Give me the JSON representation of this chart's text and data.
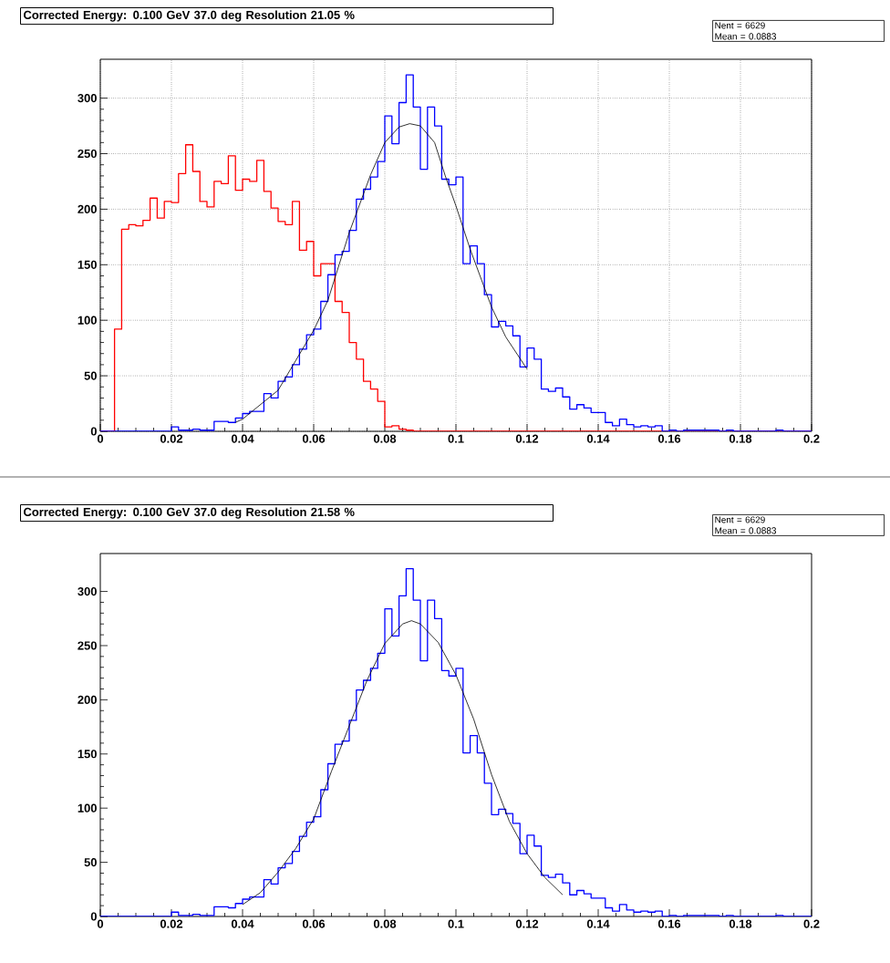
{
  "chart_data": [
    {
      "type": "histogram",
      "title": "Corrected Energy: 0.100 GeV 37.0 deg  Resolution 21.05 %",
      "annotations": [
        "Nent = 6629",
        "Mean = 0.0883"
      ],
      "bins": [
        0,
        0.002,
        0.004,
        0.006,
        0.008,
        0.01,
        0.012,
        0.014,
        0.016,
        0.018,
        0.02,
        0.022,
        0.024,
        0.026,
        0.028,
        0.03,
        0.032,
        0.034,
        0.036,
        0.038,
        0.04,
        0.042,
        0.044,
        0.046,
        0.048,
        0.05,
        0.052,
        0.054,
        0.056,
        0.058,
        0.06,
        0.062,
        0.064,
        0.066,
        0.068,
        0.07,
        0.072,
        0.074,
        0.076,
        0.078,
        0.08,
        0.082,
        0.084,
        0.086,
        0.088,
        0.09,
        0.092,
        0.094,
        0.096,
        0.098,
        0.1,
        0.102,
        0.104,
        0.106,
        0.108,
        0.11,
        0.112,
        0.114,
        0.116,
        0.118,
        0.12,
        0.122,
        0.124,
        0.126,
        0.128,
        0.13,
        0.132,
        0.134,
        0.136,
        0.138,
        0.14,
        0.142,
        0.144,
        0.146,
        0.148,
        0.15,
        0.152,
        0.154,
        0.156,
        0.158,
        0.16,
        0.162,
        0.164,
        0.166,
        0.168,
        0.17,
        0.172,
        0.174,
        0.176,
        0.178,
        0.18,
        0.182,
        0.184,
        0.186,
        0.188,
        0.19,
        0.192,
        0.194,
        0.196,
        0.198,
        0.2
      ],
      "series": [
        {
          "color": "#ff0000",
          "values": [
            0,
            0,
            92,
            182,
            186,
            185,
            190,
            210,
            192,
            207,
            206,
            232,
            258,
            234,
            207,
            202,
            225,
            223,
            248,
            217,
            227,
            225,
            244,
            216,
            201,
            189,
            186,
            207,
            163,
            171,
            140,
            151,
            151,
            117,
            107,
            80,
            65,
            45,
            38,
            27,
            4,
            5,
            2,
            1,
            0,
            0,
            0,
            0,
            0,
            0,
            0,
            0,
            0,
            0,
            0,
            0,
            0,
            0,
            0,
            0,
            0,
            0,
            0,
            0,
            0,
            0,
            0,
            0,
            0,
            0,
            0,
            0,
            0,
            0,
            0,
            0,
            0,
            0,
            0,
            0,
            0,
            0,
            0,
            0,
            0,
            0,
            0,
            0,
            0,
            0,
            0,
            0,
            0,
            0,
            0,
            0,
            0,
            0,
            0,
            0
          ]
        },
        {
          "color": "#0000ff",
          "values": [
            0,
            0,
            0,
            0,
            0,
            0,
            0,
            0,
            0,
            0,
            4,
            1,
            1,
            2,
            1,
            1,
            9,
            9,
            8,
            12,
            16,
            18,
            18,
            34,
            30,
            45,
            49,
            60,
            74,
            87,
            92,
            117,
            141,
            159,
            162,
            181,
            209,
            218,
            229,
            243,
            284,
            259,
            296,
            321,
            292,
            236,
            292,
            275,
            227,
            222,
            229,
            151,
            167,
            151,
            123,
            94,
            99,
            95,
            86,
            58,
            75,
            65,
            38,
            36,
            39,
            31,
            20,
            24,
            21,
            17,
            17,
            8,
            5,
            11,
            6,
            4,
            5,
            4,
            5,
            0,
            1,
            0,
            1,
            1,
            1,
            1,
            1,
            0,
            1,
            0,
            0,
            0,
            0,
            0,
            0,
            1,
            0,
            0,
            0,
            0
          ]
        },
        {
          "type": "line",
          "color": "#000000",
          "x": [
            0.038,
            0.04,
            0.05,
            0.06,
            0.064,
            0.07,
            0.076,
            0.08,
            0.084,
            0.087,
            0.09,
            0.094,
            0.097,
            0.1,
            0.104,
            0.11,
            0.114,
            0.12
          ],
          "values": [
            8,
            11,
            37,
            91,
            118,
            179,
            231,
            260,
            274,
            277,
            275,
            260,
            230,
            203,
            164,
            112,
            85,
            56
          ]
        }
      ],
      "xlim": [
        0,
        0.2
      ],
      "ylim": [
        0,
        335
      ],
      "xticks": [
        0,
        0.02,
        0.04,
        0.06,
        0.08,
        0.1,
        0.12,
        0.14,
        0.16,
        0.18,
        0.2
      ],
      "yticks": [
        0,
        50,
        100,
        150,
        200,
        250,
        300
      ],
      "grid": true
    },
    {
      "type": "histogram",
      "title": "Corrected Energy: 0.100 GeV 37.0 deg  Resolution 21.58 %",
      "annotations": [
        "Nent = 6629",
        "Mean = 0.0883"
      ],
      "bins": [
        0,
        0.002,
        0.004,
        0.006,
        0.008,
        0.01,
        0.012,
        0.014,
        0.016,
        0.018,
        0.02,
        0.022,
        0.024,
        0.026,
        0.028,
        0.03,
        0.032,
        0.034,
        0.036,
        0.038,
        0.04,
        0.042,
        0.044,
        0.046,
        0.048,
        0.05,
        0.052,
        0.054,
        0.056,
        0.058,
        0.06,
        0.062,
        0.064,
        0.066,
        0.068,
        0.07,
        0.072,
        0.074,
        0.076,
        0.078,
        0.08,
        0.082,
        0.084,
        0.086,
        0.088,
        0.09,
        0.092,
        0.094,
        0.096,
        0.098,
        0.1,
        0.102,
        0.104,
        0.106,
        0.108,
        0.11,
        0.112,
        0.114,
        0.116,
        0.118,
        0.12,
        0.122,
        0.124,
        0.126,
        0.128,
        0.13,
        0.132,
        0.134,
        0.136,
        0.138,
        0.14,
        0.142,
        0.144,
        0.146,
        0.148,
        0.15,
        0.152,
        0.154,
        0.156,
        0.158,
        0.16,
        0.162,
        0.164,
        0.166,
        0.168,
        0.17,
        0.172,
        0.174,
        0.176,
        0.178,
        0.18,
        0.182,
        0.184,
        0.186,
        0.188,
        0.19,
        0.192,
        0.194,
        0.196,
        0.198,
        0.2
      ],
      "series": [
        {
          "color": "#0000ff",
          "values": [
            0,
            0,
            0,
            0,
            0,
            0,
            0,
            0,
            0,
            0,
            4,
            1,
            1,
            2,
            1,
            1,
            9,
            9,
            8,
            12,
            16,
            18,
            18,
            34,
            30,
            45,
            49,
            60,
            74,
            87,
            92,
            117,
            141,
            159,
            162,
            181,
            209,
            218,
            229,
            243,
            284,
            259,
            296,
            321,
            292,
            236,
            292,
            275,
            227,
            222,
            229,
            151,
            167,
            151,
            123,
            94,
            99,
            95,
            86,
            58,
            75,
            65,
            38,
            36,
            39,
            31,
            20,
            24,
            21,
            17,
            17,
            8,
            5,
            11,
            6,
            4,
            5,
            4,
            5,
            0,
            1,
            0,
            1,
            1,
            1,
            1,
            1,
            0,
            1,
            0,
            0,
            0,
            0,
            0,
            0,
            1,
            0,
            0,
            0,
            0
          ]
        },
        {
          "type": "line",
          "color": "#000000",
          "x": [
            0.04,
            0.045,
            0.05,
            0.055,
            0.06,
            0.065,
            0.07,
            0.075,
            0.08,
            0.085,
            0.0875,
            0.09,
            0.095,
            0.1,
            0.105,
            0.11,
            0.115,
            0.12,
            0.125,
            0.13
          ],
          "values": [
            11,
            22,
            41,
            63,
            90,
            134,
            176,
            218,
            252,
            270,
            273,
            270,
            253,
            223,
            182,
            131,
            88,
            58,
            36,
            20
          ]
        }
      ],
      "xlim": [
        0,
        0.2
      ],
      "ylim": [
        0,
        335
      ],
      "xticks": [
        0,
        0.02,
        0.04,
        0.06,
        0.08,
        0.1,
        0.12,
        0.14,
        0.16,
        0.18,
        0.2
      ],
      "yticks": [
        0,
        50,
        100,
        150,
        200,
        250,
        300
      ]
    }
  ]
}
